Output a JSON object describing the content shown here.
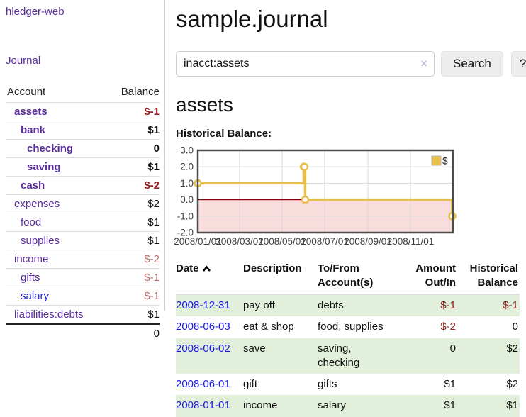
{
  "sidebar": {
    "brand": "hledger-web",
    "journal_link": "Journal",
    "accounts_table": {
      "headers": {
        "account": "Account",
        "balance": "Balance"
      },
      "rows": [
        {
          "label": "assets",
          "balance": "$-1",
          "indent": 1,
          "cls": "strong",
          "bcls": "neg-strong"
        },
        {
          "label": "bank",
          "balance": "$1",
          "indent": 2,
          "cls": "strong",
          "bcls": "strong"
        },
        {
          "label": "checking",
          "balance": "0",
          "indent": 3,
          "cls": "strong",
          "bcls": "strong"
        },
        {
          "label": "saving",
          "balance": "$1",
          "indent": 3,
          "cls": "strong",
          "bcls": "strong"
        },
        {
          "label": "cash",
          "balance": "$-2",
          "indent": 2,
          "cls": "strong",
          "bcls": "neg-strong"
        },
        {
          "label": "expenses",
          "balance": "$2",
          "indent": 1,
          "cls": "",
          "bcls": ""
        },
        {
          "label": "food",
          "balance": "$1",
          "indent": 2,
          "cls": "",
          "bcls": ""
        },
        {
          "label": "supplies",
          "balance": "$1",
          "indent": 2,
          "cls": "",
          "bcls": ""
        },
        {
          "label": "income",
          "balance": "$-2",
          "indent": 1,
          "cls": "",
          "bcls": "neg-muted"
        },
        {
          "label": "gifts",
          "balance": "$-1",
          "indent": 2,
          "cls": "",
          "bcls": "neg-muted"
        },
        {
          "label": "salary",
          "balance": "$-1",
          "indent": 2,
          "cls": "blue",
          "bcls": "neg-muted"
        },
        {
          "label": "liabilities:debts",
          "balance": "$1",
          "indent": 1,
          "cls": "",
          "bcls": ""
        }
      ],
      "total": "0"
    }
  },
  "header": {
    "title": "sample.journal"
  },
  "search": {
    "query": "inacct:assets",
    "clear_icon": "×",
    "search_label": "Search",
    "help_label": "?"
  },
  "account_page": {
    "title": "assets",
    "chart_label": "Historical Balance:"
  },
  "chart_data": {
    "type": "line",
    "step": true,
    "title": "Historical Balance:",
    "series": [
      {
        "name": "$",
        "color": "#e7c04b",
        "points": [
          [
            "2008-01-01",
            1
          ],
          [
            "2008-06-01",
            2
          ],
          [
            "2008-06-02",
            2
          ],
          [
            "2008-06-03",
            0
          ],
          [
            "2008-12-31",
            -1
          ]
        ]
      }
    ],
    "ylim": [
      -2,
      3
    ],
    "yticks": [
      3.0,
      2.0,
      1.0,
      0.0,
      -1.0,
      -2.0
    ],
    "xticks": [
      "2008/01/01",
      "2008/03/01",
      "2008/05/01",
      "2008/07/01",
      "2008/09/01",
      "2008/11/01"
    ],
    "xrange": [
      "2008-01-01",
      "2009-01-01"
    ],
    "grid": true,
    "legend": "$",
    "legend_position": "top-right",
    "negative_fill": "#f9dcdc",
    "zero_line_color": "#8b0000",
    "border_color": "#4d4d4d",
    "grid_color": "#d9d9d9"
  },
  "register_table": {
    "headers": {
      "date": "Date",
      "description": "Description",
      "tofrom": [
        "To/From",
        "Account(s)"
      ],
      "amount": [
        "Amount",
        "Out/In"
      ],
      "balance": [
        "Historical",
        "Balance"
      ]
    },
    "rows": [
      {
        "date": "2008-12-31",
        "description": "pay off",
        "accounts": "debts",
        "amount": "$-1",
        "amount_neg": true,
        "balance": "$-1",
        "balance_neg": true,
        "shaded": true
      },
      {
        "date": "2008-06-03",
        "description": "eat & shop",
        "accounts": "food, supplies",
        "amount": "$-2",
        "amount_neg": true,
        "balance": "0",
        "balance_neg": false,
        "shaded": false
      },
      {
        "date": "2008-06-02",
        "description": "save",
        "accounts": "saving, checking",
        "amount": "0",
        "amount_neg": false,
        "balance": "$2",
        "balance_neg": false,
        "shaded": true
      },
      {
        "date": "2008-06-01",
        "description": "gift",
        "accounts": "gifts",
        "amount": "$1",
        "amount_neg": false,
        "balance": "$2",
        "balance_neg": false,
        "shaded": false
      },
      {
        "date": "2008-01-01",
        "description": "income",
        "accounts": "salary",
        "amount": "$1",
        "amount_neg": false,
        "balance": "$1",
        "balance_neg": false,
        "shaded": true
      }
    ]
  },
  "colors": {
    "link_purple": "#5a2d9c",
    "link_blue": "#1a1ae6",
    "negative_strong": "#8c1b1b",
    "negative_muted": "#b26c6c",
    "row_green": "#e2efda",
    "series_gold": "#e7c04b"
  }
}
